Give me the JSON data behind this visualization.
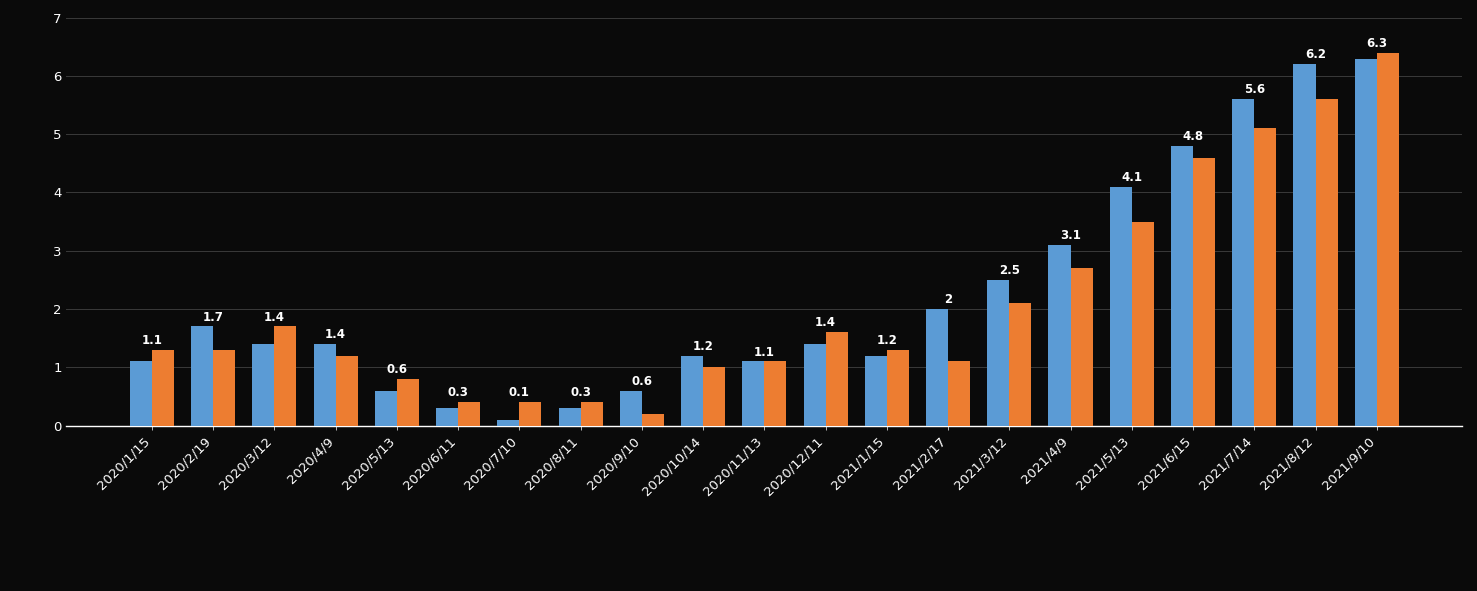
{
  "categories": [
    "2020/1/15",
    "2020/2/19",
    "2020/3/12",
    "2020/4/9",
    "2020/5/13",
    "2020/6/11",
    "2020/7/10",
    "2020/8/11",
    "2020/9/10",
    "2020/10/14",
    "2020/11/13",
    "2020/12/11",
    "2021/1/15",
    "2021/2/17",
    "2021/3/12",
    "2021/4/9",
    "2021/5/13",
    "2021/6/15",
    "2021/7/14",
    "2021/8/12",
    "2021/9/10"
  ],
  "blue_values": [
    1.1,
    1.7,
    1.4,
    1.4,
    0.6,
    0.3,
    0.1,
    0.3,
    0.6,
    1.2,
    1.1,
    1.4,
    1.2,
    2.0,
    2.5,
    3.1,
    4.1,
    4.8,
    5.6,
    6.2,
    6.3
  ],
  "orange_values": [
    1.3,
    1.3,
    1.7,
    1.2,
    0.8,
    0.4,
    0.4,
    0.4,
    0.2,
    1.0,
    1.1,
    1.6,
    1.3,
    1.1,
    2.1,
    2.7,
    3.5,
    4.6,
    5.1,
    5.6,
    6.4
  ],
  "blue_labels": [
    "1.1",
    "1.7",
    "1.4",
    "1.4",
    "0.6",
    "0.3",
    "0.1",
    "0.3",
    "0.6",
    "1.2",
    "1.1",
    "1.4",
    "1.2",
    "2",
    "2.5",
    "3.1",
    "4.1",
    "4.8",
    "5.6",
    "6.2",
    "6.3"
  ],
  "blue_color": "#5B9BD5",
  "orange_color": "#ED7D31",
  "background_color": "#0a0a0a",
  "grid_color": "#3a3a3a",
  "text_color": "#ffffff",
  "ylim": [
    0,
    7
  ],
  "yticks": [
    0,
    1,
    2,
    3,
    4,
    5,
    6,
    7
  ],
  "label_fontsize": 8.5,
  "tick_fontsize": 9.5,
  "bar_width": 0.36
}
